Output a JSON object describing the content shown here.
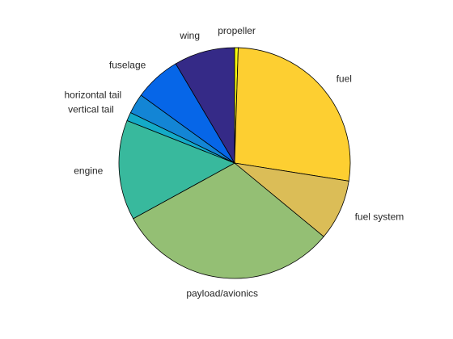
{
  "chart_data": {
    "type": "pie",
    "title": "",
    "slices": [
      {
        "label": "propeller",
        "value": 0.5,
        "color": "#f9fb0e"
      },
      {
        "label": "fuel",
        "value": 27,
        "color": "#fdcf31"
      },
      {
        "label": "fuel system",
        "value": 8.5,
        "color": "#dbbd57"
      },
      {
        "label": "payload/avionics",
        "value": 31,
        "color": "#94bf74"
      },
      {
        "label": "engine",
        "value": 14,
        "color": "#38b99d"
      },
      {
        "label": "vertical tail",
        "value": 1.2,
        "color": "#14aac7"
      },
      {
        "label": "horizontal tail",
        "value": 2.8,
        "color": "#1385d5"
      },
      {
        "label": "fuselage",
        "value": 6.5,
        "color": "#0666e8"
      },
      {
        "label": "wing",
        "value": 8.5,
        "color": "#352a87"
      }
    ]
  }
}
